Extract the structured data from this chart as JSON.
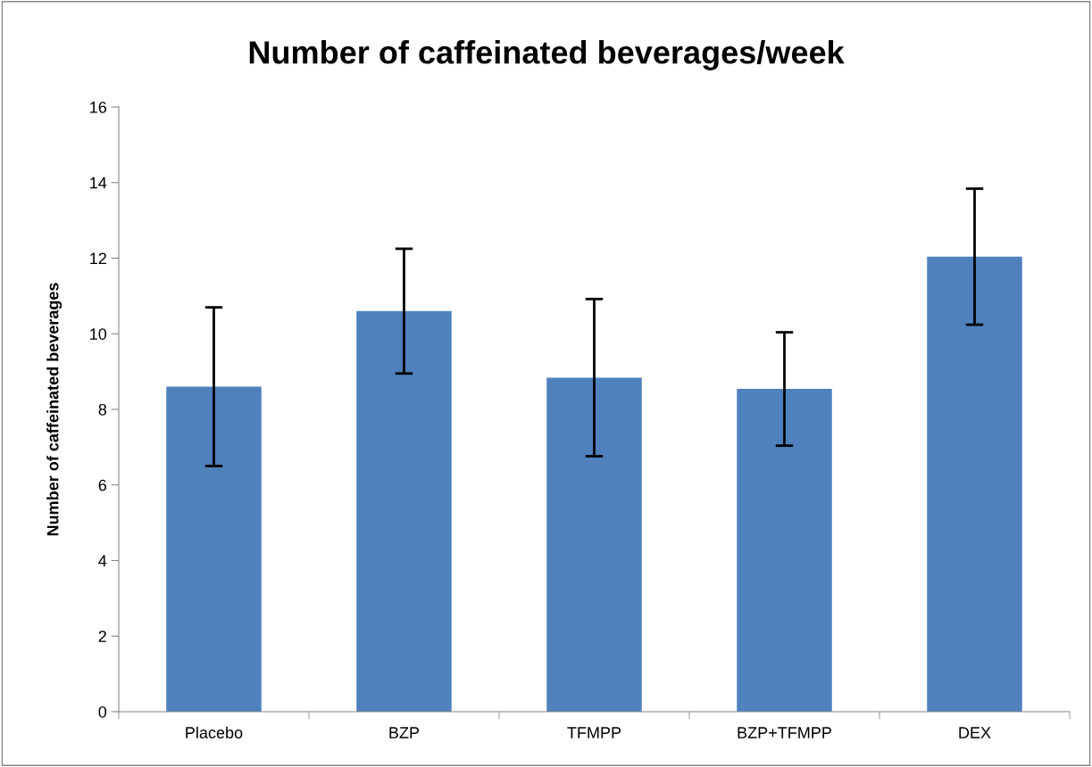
{
  "chart_data": {
    "type": "bar",
    "title": "Number of caffeinated beverages/week",
    "ylabel": "Number of caffeinated beverages",
    "categories": [
      "Placebo",
      "BZP",
      "TFMPP",
      "BZP+TFMPP",
      "DEX"
    ],
    "values": [
      8.6,
      10.6,
      8.84,
      8.54,
      12.04
    ],
    "errors": [
      2.1,
      1.65,
      2.08,
      1.5,
      1.8
    ],
    "color": "#4f81bd",
    "ylim": [
      0,
      16
    ],
    "yticks": [
      0,
      2,
      4,
      6,
      8,
      10,
      12,
      14,
      16
    ],
    "grid": false,
    "legend": false
  }
}
